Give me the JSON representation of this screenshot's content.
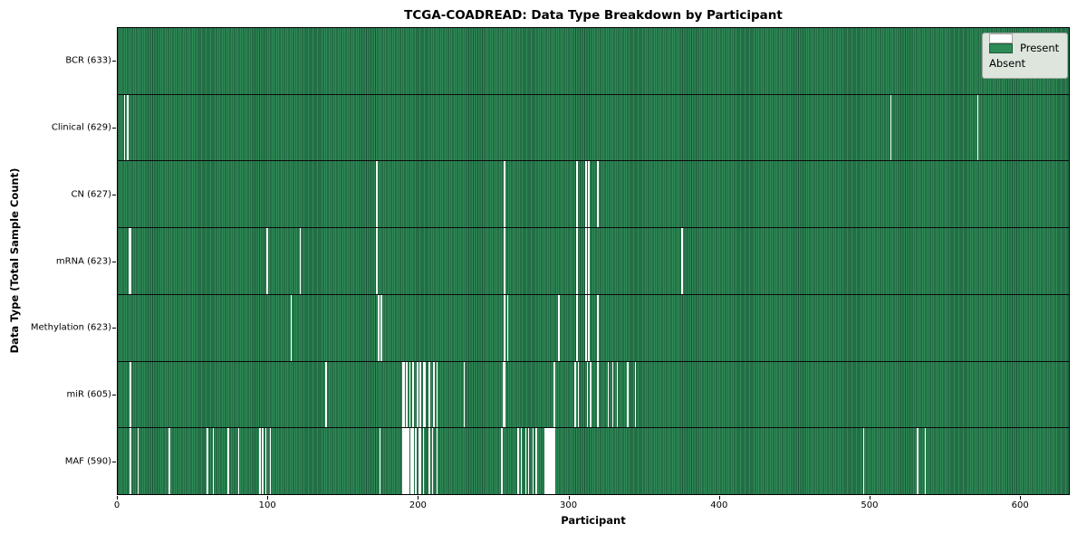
{
  "title": "TCGA-COADREAD: Data Type Breakdown by Participant",
  "xlabel": "Participant",
  "ylabel": "Data Type (Total Sample Count)",
  "legend": {
    "present_label": "Present",
    "absent_label": "Absent"
  },
  "colors": {
    "present": "#2e8b57",
    "absent": "#ffffff",
    "edge": "#1b5234",
    "legend_bg": "#dde5dd"
  },
  "chart_data": {
    "type": "heatmap",
    "title": "TCGA-COADREAD: Data Type Breakdown by Participant",
    "xlabel": "Participant",
    "ylabel": "Data Type (Total Sample Count)",
    "legend_entries": [
      "Present",
      "Absent"
    ],
    "legend_position": "upper right",
    "grid": false,
    "n_participants": 633,
    "x_range": [
      0,
      633
    ],
    "x_ticks": [
      0,
      100,
      200,
      300,
      400,
      500,
      600
    ],
    "rows": [
      {
        "name": "BCR",
        "label": "BCR (633)",
        "total": 633,
        "absent_participants": []
      },
      {
        "name": "Clinical",
        "label": "Clinical (629)",
        "total": 629,
        "absent_participants": [
          4,
          6,
          514,
          572
        ]
      },
      {
        "name": "CN",
        "label": "CN (627)",
        "total": 627,
        "absent_participants": [
          172,
          257,
          305,
          311,
          313,
          319
        ]
      },
      {
        "name": "mRNA",
        "label": "mRNA (623)",
        "total": 623,
        "absent_participants": [
          7,
          8,
          99,
          121,
          172,
          257,
          305,
          311,
          313,
          375
        ]
      },
      {
        "name": "Methylation",
        "label": "Methylation (623)",
        "total": 623,
        "absent_participants": [
          115,
          173,
          175,
          257,
          259,
          293,
          305,
          311,
          313,
          319
        ]
      },
      {
        "name": "miR",
        "label": "miR (605)",
        "total": 605,
        "absent_participants": [
          8,
          138,
          189,
          190,
          192,
          194,
          196,
          199,
          201,
          203,
          204,
          207,
          210,
          212,
          230,
          256,
          257,
          290,
          304,
          306,
          312,
          314,
          319,
          326,
          329,
          332,
          339,
          344
        ]
      },
      {
        "name": "MAF",
        "label": "MAF (590)",
        "total": 590,
        "absent_participants": [
          8,
          13,
          34,
          59,
          63,
          73,
          80,
          94,
          96,
          98,
          101,
          174,
          189,
          190,
          191,
          192,
          193,
          195,
          196,
          198,
          200,
          201,
          203,
          207,
          209,
          212,
          255,
          266,
          268,
          271,
          273,
          276,
          278,
          284,
          285,
          286,
          287,
          288,
          289,
          290,
          496,
          532,
          537
        ]
      }
    ]
  }
}
